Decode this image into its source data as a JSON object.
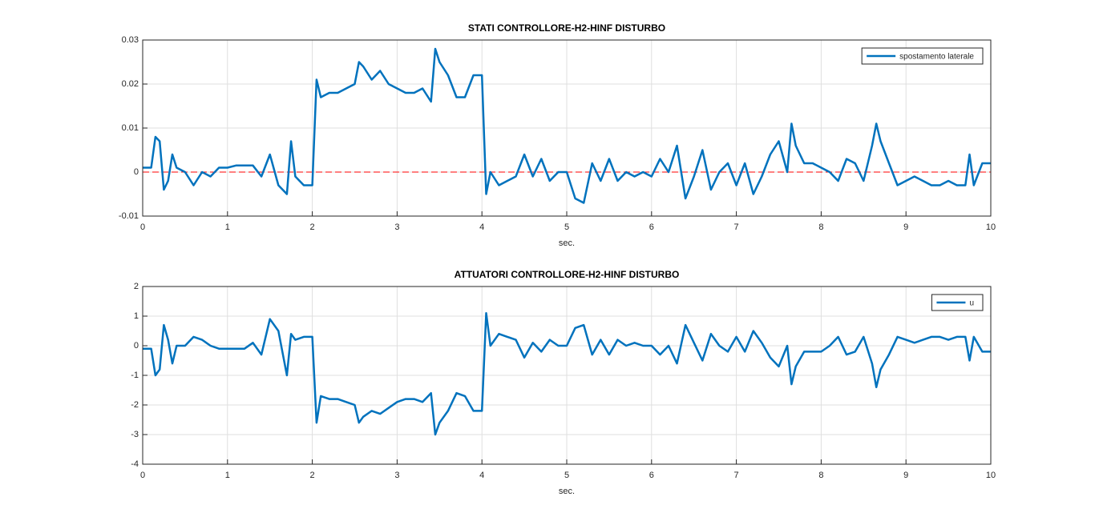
{
  "chart_data": [
    {
      "type": "line",
      "title": "STATI CONTROLLORE-H2-HINF DISTURBO",
      "x_label": "sec.",
      "x": [
        0,
        0.1,
        0.15,
        0.2,
        0.25,
        0.3,
        0.35,
        0.4,
        0.5,
        0.6,
        0.7,
        0.8,
        0.9,
        1.0,
        1.1,
        1.2,
        1.3,
        1.4,
        1.5,
        1.6,
        1.7,
        1.75,
        1.8,
        1.9,
        2.0,
        2.05,
        2.1,
        2.2,
        2.3,
        2.4,
        2.5,
        2.55,
        2.6,
        2.7,
        2.8,
        2.9,
        3.0,
        3.1,
        3.2,
        3.3,
        3.4,
        3.45,
        3.5,
        3.6,
        3.7,
        3.8,
        3.9,
        4.0,
        4.05,
        4.1,
        4.2,
        4.3,
        4.4,
        4.5,
        4.6,
        4.7,
        4.8,
        4.9,
        5.0,
        5.1,
        5.2,
        5.3,
        5.4,
        5.5,
        5.6,
        5.7,
        5.8,
        5.9,
        6.0,
        6.1,
        6.2,
        6.3,
        6.4,
        6.5,
        6.6,
        6.7,
        6.8,
        6.9,
        7.0,
        7.1,
        7.2,
        7.3,
        7.4,
        7.5,
        7.6,
        7.65,
        7.7,
        7.8,
        7.9,
        8.0,
        8.1,
        8.2,
        8.3,
        8.4,
        8.5,
        8.6,
        8.65,
        8.7,
        8.8,
        8.9,
        9.0,
        9.1,
        9.2,
        9.3,
        9.4,
        9.5,
        9.6,
        9.7,
        9.75,
        9.8,
        9.9,
        10
      ],
      "series": [
        {
          "name": "spostamento laterale",
          "color": "#0072bd",
          "values": [
            0.001,
            0.001,
            0.008,
            0.007,
            -0.004,
            -0.002,
            0.004,
            0.001,
            0.0,
            -0.003,
            0.0,
            -0.001,
            0.001,
            0.001,
            0.0015,
            0.0015,
            0.0015,
            -0.001,
            0.004,
            -0.003,
            -0.005,
            0.007,
            -0.001,
            -0.003,
            -0.003,
            0.021,
            0.017,
            0.018,
            0.018,
            0.019,
            0.02,
            0.025,
            0.024,
            0.021,
            0.023,
            0.02,
            0.019,
            0.018,
            0.018,
            0.019,
            0.016,
            0.028,
            0.025,
            0.022,
            0.017,
            0.017,
            0.022,
            0.022,
            -0.005,
            0.0,
            -0.003,
            -0.002,
            -0.001,
            0.004,
            -0.001,
            0.003,
            -0.002,
            0.0,
            0.0,
            -0.006,
            -0.007,
            0.002,
            -0.002,
            0.003,
            -0.002,
            0.0,
            -0.001,
            0.0,
            -0.001,
            0.003,
            0.0,
            0.006,
            -0.006,
            -0.001,
            0.005,
            -0.004,
            0.0,
            0.002,
            -0.003,
            0.002,
            -0.005,
            -0.001,
            0.004,
            0.007,
            0.0,
            0.011,
            0.006,
            0.002,
            0.002,
            0.001,
            0.0,
            -0.002,
            0.003,
            0.002,
            -0.002,
            0.006,
            0.011,
            0.007,
            0.002,
            -0.003,
            -0.002,
            -0.001,
            -0.002,
            -0.003,
            -0.003,
            -0.002,
            -0.003,
            -0.003,
            0.004,
            -0.003,
            0.002,
            0.002
          ]
        }
      ],
      "reference_line": {
        "value": 0,
        "color": "#ff0000"
      },
      "xlim": [
        0,
        10
      ],
      "xticks": [
        0,
        1,
        2,
        3,
        4,
        5,
        6,
        7,
        8,
        9,
        10
      ],
      "ylim": [
        -0.01,
        0.03
      ],
      "yticks": [
        -0.01,
        0,
        0.01,
        0.02,
        0.03
      ],
      "grid": true,
      "legend": "northeast"
    },
    {
      "type": "line",
      "title": "ATTUATORI CONTROLLORE-H2-HINF DISTURBO",
      "x_label": "sec.",
      "x": [
        0,
        0.1,
        0.15,
        0.2,
        0.25,
        0.3,
        0.35,
        0.4,
        0.5,
        0.6,
        0.7,
        0.8,
        0.9,
        1.0,
        1.1,
        1.2,
        1.3,
        1.4,
        1.5,
        1.6,
        1.7,
        1.75,
        1.8,
        1.9,
        2.0,
        2.05,
        2.1,
        2.2,
        2.3,
        2.4,
        2.5,
        2.55,
        2.6,
        2.7,
        2.8,
        2.9,
        3.0,
        3.1,
        3.2,
        3.3,
        3.4,
        3.45,
        3.5,
        3.6,
        3.7,
        3.8,
        3.9,
        4.0,
        4.05,
        4.1,
        4.2,
        4.3,
        4.4,
        4.5,
        4.6,
        4.7,
        4.8,
        4.9,
        5.0,
        5.1,
        5.2,
        5.3,
        5.4,
        5.5,
        5.6,
        5.7,
        5.8,
        5.9,
        6.0,
        6.1,
        6.2,
        6.3,
        6.4,
        6.5,
        6.6,
        6.7,
        6.8,
        6.9,
        7.0,
        7.1,
        7.2,
        7.3,
        7.4,
        7.5,
        7.6,
        7.65,
        7.7,
        7.8,
        7.9,
        8.0,
        8.1,
        8.2,
        8.3,
        8.4,
        8.5,
        8.6,
        8.65,
        8.7,
        8.8,
        8.9,
        9.0,
        9.1,
        9.2,
        9.3,
        9.4,
        9.5,
        9.6,
        9.7,
        9.75,
        9.8,
        9.9,
        10
      ],
      "series": [
        {
          "name": "u",
          "color": "#0072bd",
          "values": [
            -0.1,
            -0.1,
            -1.0,
            -0.8,
            0.7,
            0.2,
            -0.6,
            0.0,
            0.0,
            0.3,
            0.2,
            0.0,
            -0.1,
            -0.1,
            -0.1,
            -0.1,
            0.1,
            -0.3,
            0.9,
            0.5,
            -1.0,
            0.4,
            0.2,
            0.3,
            0.3,
            -2.6,
            -1.7,
            -1.8,
            -1.8,
            -1.9,
            -2.0,
            -2.6,
            -2.4,
            -2.2,
            -2.3,
            -2.1,
            -1.9,
            -1.8,
            -1.8,
            -1.9,
            -1.6,
            -3.0,
            -2.6,
            -2.2,
            -1.6,
            -1.7,
            -2.2,
            -2.2,
            1.1,
            0.0,
            0.4,
            0.3,
            0.2,
            -0.4,
            0.1,
            -0.2,
            0.2,
            0.0,
            0.0,
            0.6,
            0.7,
            -0.3,
            0.2,
            -0.3,
            0.2,
            0.0,
            0.1,
            0.0,
            0.0,
            -0.3,
            0.0,
            -0.6,
            0.7,
            0.1,
            -0.5,
            0.4,
            0.0,
            -0.2,
            0.3,
            -0.2,
            0.5,
            0.1,
            -0.4,
            -0.7,
            0.0,
            -1.3,
            -0.7,
            -0.2,
            -0.2,
            -0.2,
            0.0,
            0.3,
            -0.3,
            -0.2,
            0.3,
            -0.6,
            -1.4,
            -0.8,
            -0.3,
            0.3,
            0.2,
            0.1,
            0.2,
            0.3,
            0.3,
            0.2,
            0.3,
            0.3,
            -0.5,
            0.3,
            -0.2,
            -0.2
          ]
        }
      ],
      "xlim": [
        0,
        10
      ],
      "xticks": [
        0,
        1,
        2,
        3,
        4,
        5,
        6,
        7,
        8,
        9,
        10
      ],
      "ylim": [
        -4,
        2
      ],
      "yticks": [
        -4,
        -3,
        -2,
        -1,
        0,
        1,
        2
      ],
      "grid": true,
      "legend": "northeast"
    }
  ]
}
